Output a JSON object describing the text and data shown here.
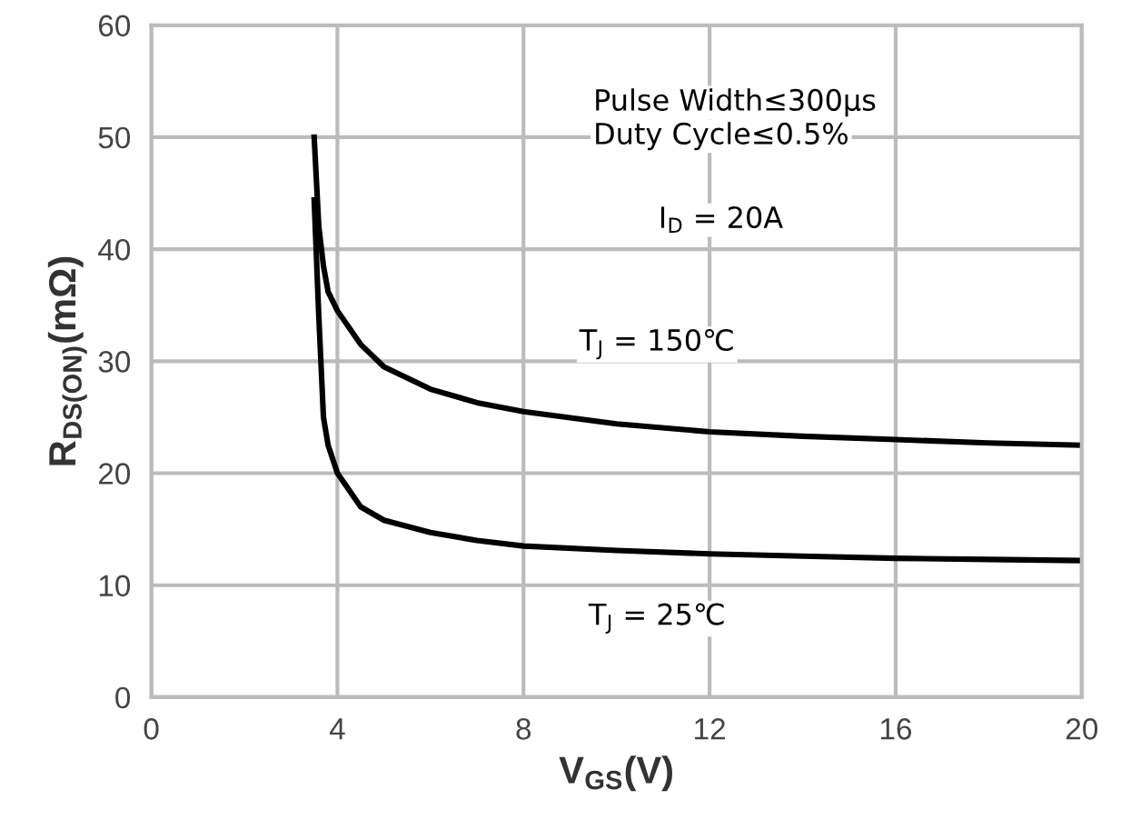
{
  "chart_data": {
    "type": "line",
    "xlabel": "V$_{GS}$(V)",
    "ylabel": "R$_{DS(ON)}$(mΩ)",
    "xlim": [
      0,
      20
    ],
    "xticks": [
      0,
      4,
      8,
      12,
      16,
      20
    ],
    "ylim": [
      0,
      60
    ],
    "yticks": [
      0,
      10,
      20,
      30,
      40,
      50,
      60
    ],
    "grid": true,
    "marker": "none",
    "line_style": "solid",
    "series": [
      {
        "color": "#000000",
        "x": [
          3.5,
          3.6,
          3.7,
          3.8,
          4,
          4.5,
          5,
          6,
          7,
          8,
          10,
          12,
          14,
          16,
          18,
          20
        ],
        "values": [
          50,
          42,
          38.5,
          36.2,
          34.5,
          31.5,
          29.5,
          27.5,
          26.3,
          25.5,
          24.4,
          23.7,
          23.3,
          23,
          22.7,
          22.5
        ]
      },
      {
        "color": "#000000",
        "x": [
          3.5,
          3.6,
          3.7,
          3.8,
          4,
          4.5,
          5,
          6,
          7,
          8,
          10,
          12,
          14,
          16,
          18,
          20
        ],
        "values": [
          44.4,
          34,
          25,
          22.5,
          20,
          17,
          15.8,
          14.7,
          14,
          13.5,
          13.1,
          12.8,
          12.6,
          12.4,
          12.3,
          12.2
        ]
      }
    ],
    "annotations": [
      "Pulse Width≤300μs",
      "Duty Cycle≤0.5%",
      "I$_{D}$ = 20A",
      "T$_{J}$ = 150℃",
      "T$_{J}$ = 25℃"
    ]
  }
}
